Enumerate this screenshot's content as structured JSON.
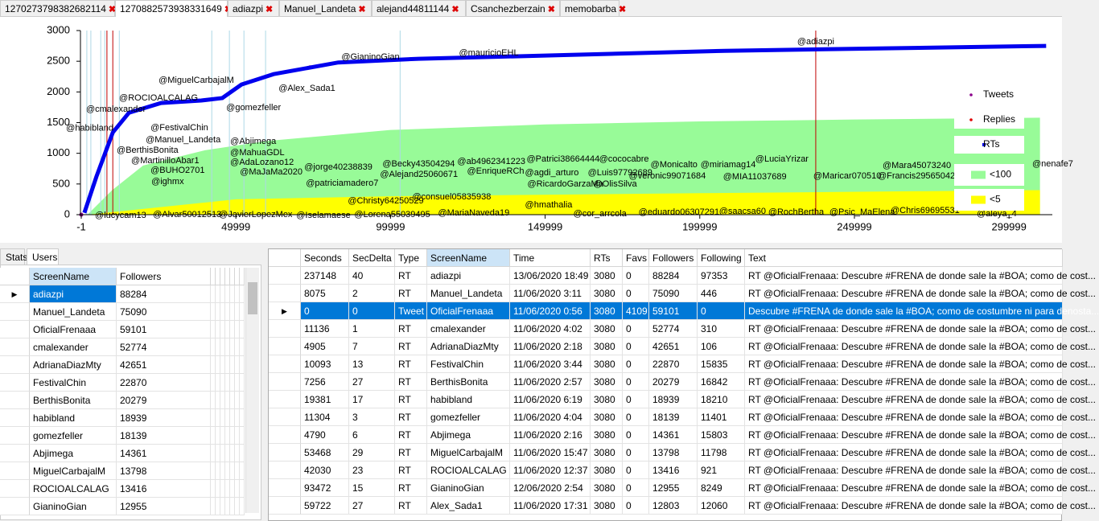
{
  "tabs": [
    "1270273798382682114",
    "1270882573938331649",
    "adiazpi",
    "Manuel_Landeta",
    "alejand44811144",
    "Csanchezberzain",
    "memobarba"
  ],
  "active_tab": 1,
  "chart_data": {
    "type": "scatter",
    "xlim": [
      -1,
      314000
    ],
    "xticks": [
      -1,
      49999,
      99999,
      149999,
      199999,
      249999,
      299999
    ],
    "ylim": [
      0,
      3000
    ],
    "yticks": [
      0,
      500,
      1000,
      1500,
      2000,
      2500,
      3000
    ],
    "series": [
      {
        "name": "Tweets",
        "color": "#8b008b",
        "style": "point",
        "x": [
          0
        ],
        "values": [
          0
        ]
      },
      {
        "name": "Replies",
        "color": "#e00000",
        "style": "point",
        "x": [
          45600,
          74000
        ],
        "values": [
          1900,
          2400
        ]
      },
      {
        "name": "RTs",
        "color": "#0000ee",
        "style": "line",
        "x": [
          1000,
          4900,
          10200,
          15400,
          25800,
          38800,
          45600,
          51800,
          62200,
          83100,
          109100,
          156000,
          208000,
          260000,
          312000
        ],
        "values": [
          30,
          620,
          1340,
          1660,
          1820,
          1860,
          1900,
          2120,
          2290,
          2480,
          2540,
          2600,
          2670,
          2710,
          2750
        ]
      },
      {
        "name": "<100",
        "color": "#98fb98",
        "style": "area",
        "x": [
          2000,
          10000,
          20000,
          40000,
          60000,
          100000,
          150000,
          200000,
          250000,
          310000
        ],
        "values": [
          0,
          400,
          800,
          1050,
          1200,
          1380,
          1470,
          1520,
          1550,
          1580
        ]
      },
      {
        "name": "<5",
        "color": "#ffff00",
        "style": "area",
        "x": [
          2000,
          50000,
          100000,
          200000,
          310000
        ],
        "values": [
          0,
          250,
          300,
          350,
          400
        ]
      }
    ],
    "vlines": [
      {
        "x": 1800,
        "color": "#add8e6"
      },
      {
        "x": 3100,
        "color": "#add8e6"
      },
      {
        "x": 6300,
        "color": "#add8e6"
      },
      {
        "x": 7600,
        "color": "#add8e6"
      },
      {
        "x": 12300,
        "color": "#add8e6"
      },
      {
        "x": 42200,
        "color": "#add8e6"
      },
      {
        "x": 47900,
        "color": "#add8e6"
      },
      {
        "x": 52600,
        "color": "#add8e6"
      },
      {
        "x": 59600,
        "color": "#add8e6"
      },
      {
        "x": 103100,
        "color": "#add8e6"
      },
      {
        "x": 8300,
        "color": "#c00000"
      },
      {
        "x": 10200,
        "color": "#c00000"
      },
      {
        "x": 237500,
        "color": "#c00000"
      }
    ],
    "annotations": [
      {
        "text": "@habibland",
        "x": -4900,
        "y": 1410
      },
      {
        "text": "@cmalexander",
        "x": 1560,
        "y": 1716
      },
      {
        "text": "@ROCIOALCALAG",
        "x": 12240,
        "y": 1900
      },
      {
        "text": "@MiguelCarbajalM",
        "x": 25000,
        "y": 2188
      },
      {
        "text": "@gomezfeller",
        "x": 46870,
        "y": 1742
      },
      {
        "text": "@Alex_Sada1",
        "x": 63800,
        "y": 2057
      },
      {
        "text": "@GianinoGian",
        "x": 84110,
        "y": 2568
      },
      {
        "text": "@mauricioEHL",
        "x": 122130,
        "y": 2633
      },
      {
        "text": "@adiazpi",
        "x": 231500,
        "y": 2817
      },
      {
        "text": "@FestivalChin",
        "x": 22390,
        "y": 1415
      },
      {
        "text": "@Manuel_Landeta",
        "x": 20830,
        "y": 1218
      },
      {
        "text": "@Abjimega",
        "x": 48170,
        "y": 1192
      },
      {
        "text": "@BerthisBonita",
        "x": 11460,
        "y": 1048
      },
      {
        "text": "@MahuaGDL",
        "x": 48170,
        "y": 1009
      },
      {
        "text": "@AdaLozano12",
        "x": 48170,
        "y": 852
      },
      {
        "text": "@MartinilloAbar1",
        "x": 16140,
        "y": 878
      },
      {
        "text": "@BUHO2701",
        "x": 22390,
        "y": 720
      },
      {
        "text": "@MaJaMa2020",
        "x": 51300,
        "y": 694
      },
      {
        "text": "@jorge40238839",
        "x": 72130,
        "y": 773
      },
      {
        "text": "@Becky43504294",
        "x": 97390,
        "y": 825
      },
      {
        "text": "@ab4962341223",
        "x": 121600,
        "y": 865
      },
      {
        "text": "@Patrici38664444",
        "x": 144000,
        "y": 904
      },
      {
        "text": "@cococabre",
        "x": 167440,
        "y": 904
      },
      {
        "text": "@Monicalto",
        "x": 184100,
        "y": 812
      },
      {
        "text": "@miriamag14",
        "x": 200250,
        "y": 812
      },
      {
        "text": "@LuciaYrizar",
        "x": 217950,
        "y": 904
      },
      {
        "text": "@Mara45073240",
        "x": 259100,
        "y": 799
      },
      {
        "text": "@MIA11037689",
        "x": 207540,
        "y": 616
      },
      {
        "text": "@Maricar070510",
        "x": 236700,
        "y": 629
      },
      {
        "text": "@Francis29565042",
        "x": 257540,
        "y": 629
      },
      {
        "text": "@nenafe7",
        "x": 307500,
        "y": 825
      },
      {
        "text": "@Alejand25060671",
        "x": 96600,
        "y": 655
      },
      {
        "text": "@EnriqueRCh",
        "x": 124730,
        "y": 707
      },
      {
        "text": "@agdi_arturo",
        "x": 143480,
        "y": 681
      },
      {
        "text": "@Luis97792689",
        "x": 163790,
        "y": 681
      },
      {
        "text": "@veronic99071684",
        "x": 177070,
        "y": 629
      },
      {
        "text": "@patriciamadero7",
        "x": 72650,
        "y": 511
      },
      {
        "text": "@RicardoGarzaMa",
        "x": 144260,
        "y": 498
      },
      {
        "text": "@OlisSilva",
        "x": 165620,
        "y": 498
      },
      {
        "text": "@ighmx",
        "x": 22650,
        "y": 537
      },
      {
        "text": "@Christy64250529",
        "x": 86190,
        "y": 223
      },
      {
        "text": "@consuel05835938",
        "x": 107020,
        "y": 288
      },
      {
        "text": "@hmathalia",
        "x": 143480,
        "y": 157
      },
      {
        "text": "@MariaNaveda19",
        "x": 115360,
        "y": 26
      },
      {
        "text": "@cor_arrcola",
        "x": 159110,
        "y": 13
      },
      {
        "text": "@eduardo06307291",
        "x": 180200,
        "y": 39
      },
      {
        "text": "@saacsa60",
        "x": 206240,
        "y": 52
      },
      {
        "text": "@RochBertha",
        "x": 222120,
        "y": 39
      },
      {
        "text": "@Psic_MaElena",
        "x": 241910,
        "y": 39
      },
      {
        "text": "@Chris69695531",
        "x": 261700,
        "y": 66
      },
      {
        "text": "@aleya_4",
        "x": 289570,
        "y": 13
      },
      {
        "text": "@lucycam13",
        "x": 4430,
        "y": -13
      },
      {
        "text": "@Alvar50012513",
        "x": 23180,
        "y": 0
      },
      {
        "text": "@JavierLopezMex",
        "x": 44530,
        "y": 0
      },
      {
        "text": "@Iselamaese",
        "x": 69530,
        "y": -13
      },
      {
        "text": "@Lorena55039495",
        "x": 88280,
        "y": 0
      }
    ]
  },
  "left_tabs": [
    "Stats",
    "Users"
  ],
  "users_table": {
    "columns": [
      "ScreenName",
      "Followers"
    ],
    "rows": [
      [
        "adiazpi",
        88284
      ],
      [
        "Manuel_Landeta",
        75090
      ],
      [
        "OficialFrenaaa",
        59101
      ],
      [
        "cmalexander",
        52774
      ],
      [
        "AdrianaDiazMty",
        42651
      ],
      [
        "FestivalChin",
        22870
      ],
      [
        "BerthisBonita",
        20279
      ],
      [
        "habibland",
        18939
      ],
      [
        "gomezfeller",
        18139
      ],
      [
        "Abjimega",
        14361
      ],
      [
        "MiguelCarbajalM",
        13798
      ],
      [
        "ROCIOALCALAG",
        13416
      ],
      [
        "GianinoGian",
        12955
      ]
    ],
    "selected_row": 0
  },
  "tweets_table": {
    "columns": [
      "Seconds",
      "SecDelta",
      "Type",
      "ScreenName",
      "Time",
      "RTs",
      "Favs",
      "Followers",
      "Following",
      "Text"
    ],
    "rows": [
      [
        237148,
        40,
        "RT",
        "adiazpi",
        "13/06/2020 18:49",
        3080,
        0,
        88284,
        97353,
        "RT @OficialFrenaaa: Descubre #FRENA  de donde sale la #BOA; como de cost..."
      ],
      [
        8075,
        2,
        "RT",
        "Manuel_Landeta",
        "11/06/2020 3:11",
        3080,
        0,
        75090,
        446,
        "RT @OficialFrenaaa: Descubre #FRENA  de donde sale la #BOA; como de cost..."
      ],
      [
        0,
        0,
        "Tweet",
        "OficialFrenaaa",
        "11/06/2020 0:56",
        3080,
        4109,
        59101,
        0,
        "Descubre #FRENA  de donde sale la #BOA; como de costumbre ni para denosta..."
      ],
      [
        11136,
        1,
        "RT",
        "cmalexander",
        "11/06/2020 4:02",
        3080,
        0,
        52774,
        310,
        "RT @OficialFrenaaa: Descubre #FRENA  de donde sale la #BOA; como de cost..."
      ],
      [
        4905,
        7,
        "RT",
        "AdrianaDiazMty",
        "11/06/2020 2:18",
        3080,
        0,
        42651,
        106,
        "RT @OficialFrenaaa: Descubre #FRENA  de donde sale la #BOA; como de cost..."
      ],
      [
        10093,
        13,
        "RT",
        "FestivalChin",
        "11/06/2020 3:44",
        3080,
        0,
        22870,
        15835,
        "RT @OficialFrenaaa: Descubre #FRENA  de donde sale la #BOA; como de cost..."
      ],
      [
        7256,
        27,
        "RT",
        "BerthisBonita",
        "11/06/2020 2:57",
        3080,
        0,
        20279,
        16842,
        "RT @OficialFrenaaa: Descubre #FRENA  de donde sale la #BOA; como de cost..."
      ],
      [
        19381,
        17,
        "RT",
        "habibland",
        "11/06/2020 6:19",
        3080,
        0,
        18939,
        18210,
        "RT @OficialFrenaaa: Descubre #FRENA  de donde sale la #BOA; como de cost..."
      ],
      [
        11304,
        3,
        "RT",
        "gomezfeller",
        "11/06/2020 4:04",
        3080,
        0,
        18139,
        11401,
        "RT @OficialFrenaaa: Descubre #FRENA  de donde sale la #BOA; como de cost..."
      ],
      [
        4790,
        6,
        "RT",
        "Abjimega",
        "11/06/2020 2:16",
        3080,
        0,
        14361,
        15803,
        "RT @OficialFrenaaa: Descubre #FRENA  de donde sale la #BOA; como de cost..."
      ],
      [
        53468,
        29,
        "RT",
        "MiguelCarbajalM",
        "11/06/2020 15:47",
        3080,
        0,
        13798,
        11798,
        "RT @OficialFrenaaa: Descubre #FRENA  de donde sale la #BOA; como de cost..."
      ],
      [
        42030,
        23,
        "RT",
        "ROCIOALCALAG",
        "11/06/2020 12:37",
        3080,
        0,
        13416,
        921,
        "RT @OficialFrenaaa: Descubre #FRENA  de donde sale la #BOA; como de cost..."
      ],
      [
        93472,
        15,
        "RT",
        "GianinoGian",
        "12/06/2020 2:54",
        3080,
        0,
        12955,
        8249,
        "RT @OficialFrenaaa: Descubre #FRENA  de donde sale la #BOA; como de cost..."
      ],
      [
        59722,
        27,
        "RT",
        "Alex_Sada1",
        "11/06/2020 17:31",
        3080,
        0,
        12803,
        12060,
        "RT @OficialFrenaaa: Descubre #FRENA  de donde sale la #BOA; como de cost..."
      ]
    ],
    "selected_row": 2
  }
}
